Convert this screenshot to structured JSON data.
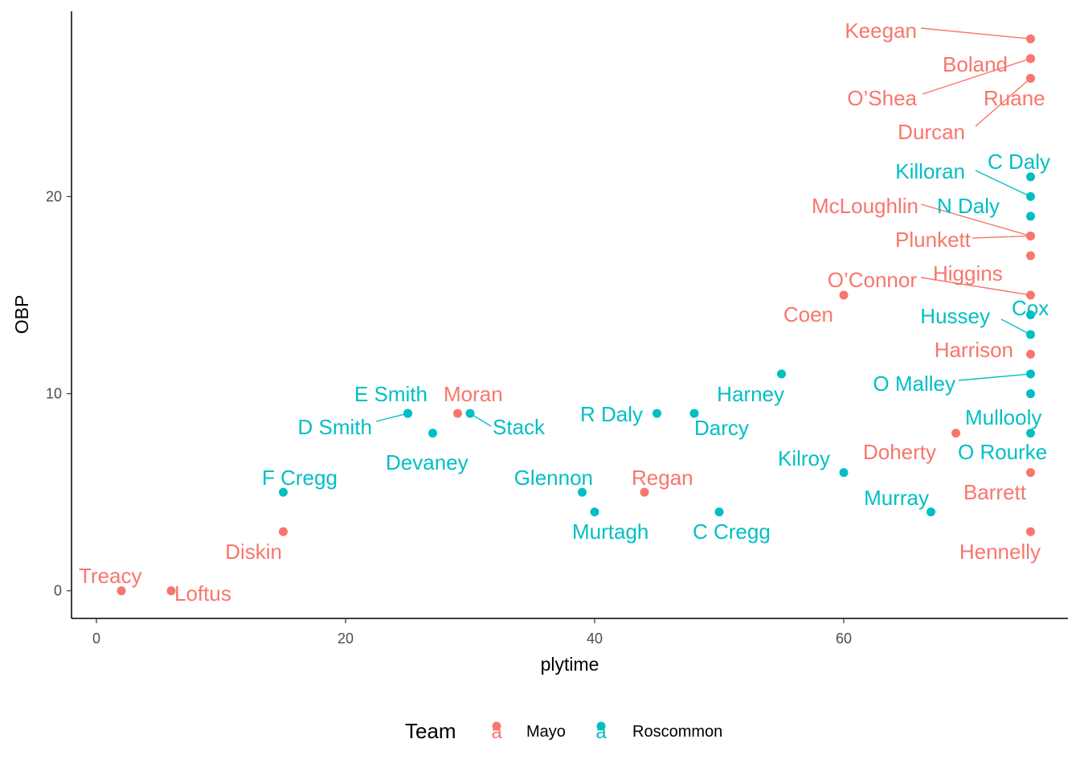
{
  "chart_data": {
    "type": "scatter",
    "xlabel": "plytime",
    "ylabel": "OBP",
    "xlim": [
      -2,
      78
    ],
    "ylim": [
      -1.4,
      29.4
    ],
    "x_ticks": [
      0,
      20,
      40,
      60
    ],
    "y_ticks": [
      0,
      10,
      20
    ],
    "x_tick_labels": [
      "0",
      "20",
      "40",
      "60"
    ],
    "y_tick_labels": [
      "0",
      "10",
      "20"
    ],
    "grid": false,
    "legend": {
      "title": "Team",
      "position": "bottom",
      "key_glyph": "a",
      "entries": [
        {
          "label": "Mayo",
          "color": "#F8766D"
        },
        {
          "label": "Roscommon",
          "color": "#00BFC4"
        }
      ]
    },
    "series": [
      {
        "name": "Mayo",
        "color": "#F8766D",
        "points": [
          {
            "label": "Keegan",
            "x": 75,
            "y": 28
          },
          {
            "label": "Boland",
            "x": 75,
            "y": 27
          },
          {
            "label": "O’Shea",
            "x": 75,
            "y": 27
          },
          {
            "label": "Ruane",
            "x": 75,
            "y": 26
          },
          {
            "label": "Durcan",
            "x": 75,
            "y": 26
          },
          {
            "label": "McLoughlin",
            "x": 75,
            "y": 18
          },
          {
            "label": "Plunkett",
            "x": 75,
            "y": 18
          },
          {
            "label": "Higgins",
            "x": 75,
            "y": 17
          },
          {
            "label": "O’Connor",
            "x": 75,
            "y": 15
          },
          {
            "label": "Coen",
            "x": 60,
            "y": 15
          },
          {
            "label": "Harrison",
            "x": 75,
            "y": 12
          },
          {
            "label": "Doherty",
            "x": 69,
            "y": 8
          },
          {
            "label": "Barrett",
            "x": 75,
            "y": 6
          },
          {
            "label": "Hennelly",
            "x": 75,
            "y": 3
          },
          {
            "label": "Moran",
            "x": 29,
            "y": 9
          },
          {
            "label": "Regan",
            "x": 44,
            "y": 5
          },
          {
            "label": "Diskin",
            "x": 15,
            "y": 3
          },
          {
            "label": "Treacy",
            "x": 2,
            "y": 0
          },
          {
            "label": "Loftus",
            "x": 6,
            "y": 0
          }
        ]
      },
      {
        "name": "Roscommon",
        "color": "#00BFC4",
        "points": [
          {
            "label": "C Daly",
            "x": 75,
            "y": 21
          },
          {
            "label": "Killoran",
            "x": 75,
            "y": 20
          },
          {
            "label": "N Daly",
            "x": 75,
            "y": 19
          },
          {
            "label": "Cox",
            "x": 75,
            "y": 14
          },
          {
            "label": "Hussey",
            "x": 75,
            "y": 13
          },
          {
            "label": "O Malley",
            "x": 75,
            "y": 11
          },
          {
            "label": "Mullooly",
            "x": 75,
            "y": 10
          },
          {
            "label": "O Rourke",
            "x": 75,
            "y": 8
          },
          {
            "label": "Harney",
            "x": 55,
            "y": 11
          },
          {
            "label": "Kilroy",
            "x": 60,
            "y": 6
          },
          {
            "label": "Murray",
            "x": 67,
            "y": 4
          },
          {
            "label": "R Daly",
            "x": 45,
            "y": 9
          },
          {
            "label": "Darcy",
            "x": 48,
            "y": 9
          },
          {
            "label": "C Cregg",
            "x": 50,
            "y": 4
          },
          {
            "label": "Glennon",
            "x": 39,
            "y": 5
          },
          {
            "label": "Murtagh",
            "x": 40,
            "y": 4
          },
          {
            "label": "E Smith",
            "x": 25,
            "y": 9
          },
          {
            "label": "D Smith",
            "x": 25,
            "y": 9
          },
          {
            "label": "Devaney",
            "x": 27,
            "y": 8
          },
          {
            "label": "Stack",
            "x": 30,
            "y": 9
          },
          {
            "label": "F Cregg",
            "x": 15,
            "y": 5
          }
        ]
      }
    ]
  }
}
